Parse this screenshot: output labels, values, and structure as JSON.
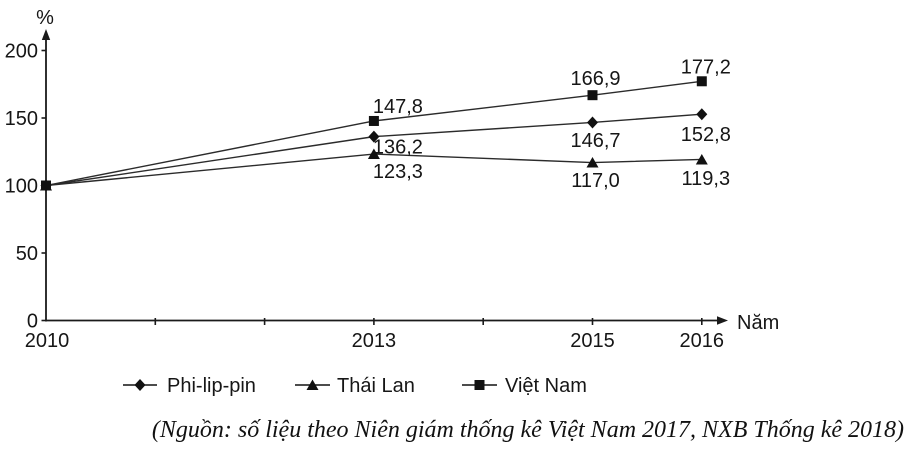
{
  "chart_data": {
    "type": "line",
    "title": "",
    "ylabel": "%",
    "xlabel": "Năm",
    "x": [
      2010,
      2013,
      2015,
      2016
    ],
    "x_tick_labels": [
      "2010",
      "2013",
      "2015",
      "2016"
    ],
    "x_minor_tick_years": [
      2011,
      2012,
      2013,
      2014,
      2015,
      2016
    ],
    "yticks": [
      0,
      50,
      100,
      150,
      200
    ],
    "ytick_labels": [
      "0",
      "50",
      "100",
      "150",
      "200"
    ],
    "ylim": [
      0,
      200
    ],
    "xlim": [
      2010,
      2016
    ],
    "grid": false,
    "legend_position": "bottom",
    "line_color": "#2b2b2b",
    "text_color": "#161616",
    "series": [
      {
        "name": "Phi-lip-pin",
        "marker": "diamond",
        "values": [
          100,
          136.2,
          146.7,
          152.8
        ],
        "point_labels": [
          "",
          "136,2",
          "146,7",
          "152,8"
        ],
        "label_placement": "below"
      },
      {
        "name": "Thái Lan",
        "marker": "triangle",
        "values": [
          100,
          123.3,
          117.0,
          119.3
        ],
        "point_labels": [
          "",
          "123,3",
          "117,0",
          "119,3"
        ],
        "label_placement": "below"
      },
      {
        "name": "Việt Nam",
        "marker": "square",
        "values": [
          100,
          147.8,
          166.9,
          177.2
        ],
        "point_labels": [
          "",
          "147,8",
          "166,9",
          "177,2"
        ],
        "label_placement": "above"
      }
    ]
  },
  "source_note": "(Nguồn: số liệu theo Niên giám thống kê Việt Nam 2017, NXB Thống kê 2018)"
}
